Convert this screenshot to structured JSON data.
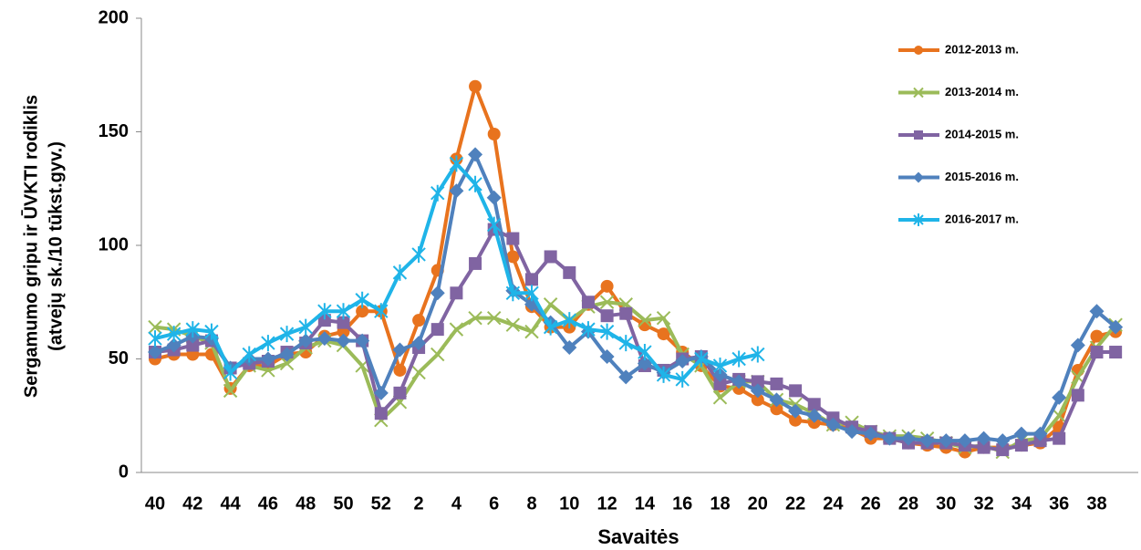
{
  "chart_data": {
    "type": "line",
    "ylabel": [
      "Sergamumo gripu ir ŪVKTI rodiklis",
      "(atvejų sk./10 tūkst.gyv.)"
    ],
    "xlabel": "Savaitės",
    "categories": [
      40,
      null,
      42,
      null,
      44,
      null,
      46,
      null,
      48,
      null,
      50,
      null,
      52,
      null,
      2,
      null,
      4,
      null,
      6,
      null,
      8,
      null,
      10,
      null,
      12,
      null,
      14,
      null,
      16,
      null,
      18,
      null,
      20,
      null,
      22,
      null,
      24,
      null,
      26,
      null,
      28,
      null,
      30,
      null,
      32,
      null,
      34,
      null,
      36,
      null,
      38,
      null
    ],
    "ylim": [
      0,
      200
    ],
    "yticks": [
      0,
      50,
      100,
      150,
      200
    ],
    "grid": false,
    "legend": "upper right",
    "series": [
      {
        "name": "2012-2013 m.",
        "color": "#e8731e",
        "marker": "circle",
        "values": [
          50,
          52,
          52,
          52,
          37,
          47,
          47,
          52,
          53,
          60,
          62,
          71,
          71,
          45,
          67,
          89,
          138,
          170,
          149,
          95,
          73,
          64,
          64,
          74,
          82,
          70,
          65,
          61,
          53,
          47,
          38,
          37,
          32,
          28,
          23,
          22,
          21,
          19,
          15,
          15,
          13,
          12,
          11,
          9,
          11,
          11,
          12,
          13,
          20,
          45,
          60,
          62
        ]
      },
      {
        "name": "2013-2014 m.",
        "color": "#9bbb59",
        "marker": "x",
        "values": [
          64,
          63,
          60,
          57,
          36,
          47,
          45,
          48,
          55,
          58,
          56,
          47,
          23,
          31,
          44,
          52,
          63,
          68,
          68,
          65,
          62,
          74,
          67,
          73,
          75,
          74,
          67,
          68,
          52,
          47,
          33,
          40,
          40,
          32,
          30,
          26,
          21,
          22,
          18,
          16,
          16,
          15,
          13,
          11,
          12,
          9,
          14,
          15,
          25,
          42,
          55,
          65
        ]
      },
      {
        "name": "2014-2015 m.",
        "color": "#8064a2",
        "marker": "square",
        "values": [
          53,
          54,
          56,
          58,
          46,
          48,
          49,
          53,
          57,
          67,
          66,
          58,
          26,
          35,
          55,
          63,
          79,
          92,
          107,
          103,
          85,
          95,
          88,
          75,
          69,
          70,
          47,
          45,
          50,
          51,
          39,
          41,
          40,
          39,
          36,
          30,
          24,
          20,
          18,
          15,
          13,
          13,
          13,
          12,
          11,
          10,
          12,
          14,
          15,
          34,
          53,
          53
        ]
      },
      {
        "name": "2015-2016 m.",
        "color": "#4f81bd",
        "marker": "diamond",
        "values": [
          53,
          56,
          60,
          59,
          46,
          50,
          50,
          52,
          58,
          59,
          58,
          58,
          35,
          54,
          57,
          79,
          124,
          140,
          121,
          80,
          74,
          66,
          55,
          62,
          51,
          42,
          48,
          44,
          49,
          51,
          43,
          40,
          36,
          32,
          27,
          25,
          21,
          18,
          17,
          15,
          15,
          14,
          14,
          14,
          15,
          14,
          17,
          17,
          33,
          56,
          71,
          64
        ]
      },
      {
        "name": "2016-2017 m.",
        "color": "#1fb4e8",
        "marker": "star",
        "values": [
          59,
          61,
          63,
          62,
          44,
          52,
          57,
          61,
          64,
          71,
          71,
          76,
          71,
          88,
          96,
          123,
          136,
          127,
          109,
          79,
          79,
          64,
          67,
          63,
          62,
          57,
          53,
          43,
          41,
          50,
          47,
          50,
          52,
          null,
          null,
          null,
          null,
          null,
          null,
          null,
          null,
          null,
          null,
          null,
          null,
          null,
          null,
          null,
          null,
          null,
          null,
          null
        ]
      }
    ]
  }
}
